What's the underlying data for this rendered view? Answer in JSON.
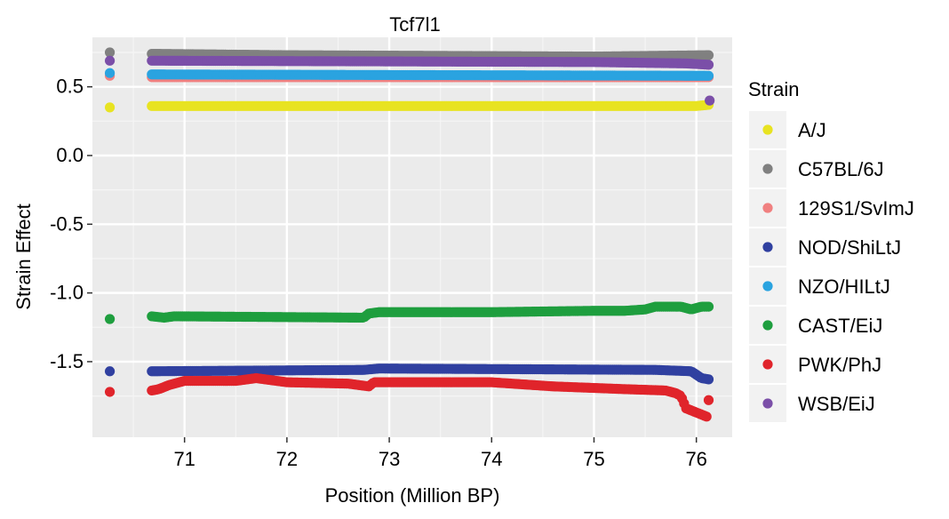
{
  "chart_data": {
    "type": "scatter",
    "title": "Tcf7l1",
    "xlabel": "Position (Million BP)",
    "ylabel": "Strain Effect",
    "xlim": [
      70.1,
      76.35
    ],
    "ylim": [
      -2.05,
      0.86
    ],
    "x_ticks": [
      71,
      72,
      73,
      74,
      75,
      76
    ],
    "x_tick_labels": [
      "71",
      "72",
      "73",
      "74",
      "75",
      "76"
    ],
    "y_ticks": [
      0.5,
      0.0,
      -0.5,
      -1.0,
      -1.5
    ],
    "y_tick_labels": [
      "0.5",
      "0.0",
      "-0.5",
      "-1.0",
      "-1.5"
    ],
    "grid": true,
    "legend": {
      "title": "Strain",
      "placement": "right",
      "entries": [
        "A/J",
        "C57BL/6J",
        "129S1/SvImJ",
        "NOD/ShiLtJ",
        "NZO/HILtJ",
        "CAST/EiJ",
        "PWK/PhJ",
        "WSB/EiJ"
      ]
    },
    "x_sampling": {
      "outlier_x": 70.27,
      "start": 70.68,
      "end": 76.13,
      "step": 0.02
    },
    "series": [
      {
        "name": "A/J",
        "color": "#E8E321",
        "outlier": 0.35,
        "profile": [
          [
            70.68,
            0.36
          ],
          [
            76.0,
            0.36
          ],
          [
            76.13,
            0.37
          ]
        ]
      },
      {
        "name": "C57BL/6J",
        "color": "#808080",
        "outlier": 0.75,
        "profile": [
          [
            70.68,
            0.74
          ],
          [
            72.0,
            0.73
          ],
          [
            75.0,
            0.72
          ],
          [
            76.13,
            0.73
          ]
        ]
      },
      {
        "name": "129S1/SvImJ",
        "color": "#F08080",
        "outlier": 0.58,
        "profile": [
          [
            70.68,
            0.57
          ],
          [
            76.13,
            0.57
          ]
        ]
      },
      {
        "name": "NOD/ShiLtJ",
        "color": "#3040A0",
        "outlier": -1.57,
        "profile": [
          [
            70.68,
            -1.57
          ],
          [
            72.75,
            -1.56
          ],
          [
            72.9,
            -1.55
          ],
          [
            75.6,
            -1.56
          ],
          [
            75.95,
            -1.57
          ],
          [
            76.05,
            -1.62
          ],
          [
            76.13,
            -1.63
          ]
        ]
      },
      {
        "name": "NZO/HILtJ",
        "color": "#2AA3E0",
        "outlier": 0.6,
        "profile": [
          [
            70.68,
            0.59
          ],
          [
            76.13,
            0.58
          ]
        ]
      },
      {
        "name": "CAST/EiJ",
        "color": "#1E9E3E",
        "outlier": -1.19,
        "profile": [
          [
            70.68,
            -1.17
          ],
          [
            70.8,
            -1.18
          ],
          [
            70.9,
            -1.17
          ],
          [
            72.75,
            -1.18
          ],
          [
            72.8,
            -1.15
          ],
          [
            72.9,
            -1.14
          ],
          [
            74.0,
            -1.14
          ],
          [
            75.0,
            -1.13
          ],
          [
            75.3,
            -1.13
          ],
          [
            75.5,
            -1.12
          ],
          [
            75.6,
            -1.1
          ],
          [
            75.85,
            -1.1
          ],
          [
            75.95,
            -1.12
          ],
          [
            76.05,
            -1.1
          ],
          [
            76.13,
            -1.1
          ]
        ]
      },
      {
        "name": "PWK/PhJ",
        "color": "#E0242B",
        "outlier": -1.72,
        "profile": [
          [
            70.68,
            -1.71
          ],
          [
            70.75,
            -1.7
          ],
          [
            70.85,
            -1.67
          ],
          [
            71.0,
            -1.64
          ],
          [
            71.5,
            -1.64
          ],
          [
            71.7,
            -1.62
          ],
          [
            72.0,
            -1.65
          ],
          [
            72.6,
            -1.66
          ],
          [
            72.8,
            -1.68
          ],
          [
            72.85,
            -1.65
          ],
          [
            74.0,
            -1.65
          ],
          [
            74.6,
            -1.68
          ],
          [
            75.3,
            -1.7
          ],
          [
            75.7,
            -1.71
          ],
          [
            75.8,
            -1.73
          ],
          [
            75.85,
            -1.75
          ],
          [
            75.9,
            -1.84
          ],
          [
            76.0,
            -1.87
          ],
          [
            76.1,
            -1.9
          ],
          [
            76.13,
            -1.72
          ]
        ]
      },
      {
        "name": "WSB/EiJ",
        "color": "#7B4FA8",
        "outlier": 0.69,
        "profile": [
          [
            70.68,
            0.69
          ],
          [
            75.0,
            0.68
          ],
          [
            75.9,
            0.67
          ],
          [
            76.13,
            0.66
          ]
        ],
        "extra_points": [
          [
            76.13,
            0.4
          ]
        ]
      }
    ]
  }
}
